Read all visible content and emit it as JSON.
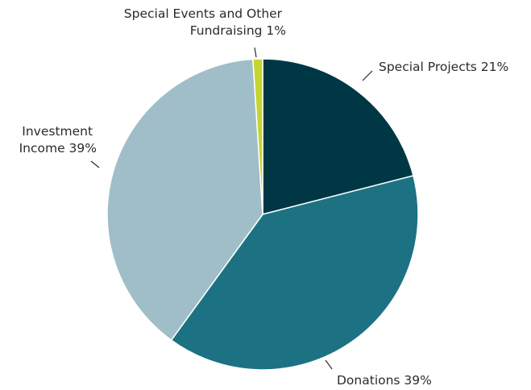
{
  "chart_data": {
    "type": "pie",
    "start_angle_deg": 0,
    "direction": "clockwise",
    "slices": [
      {
        "label": "Special Projects 21%",
        "lines": [
          "Special Projects 21%"
        ],
        "value": 21,
        "color": "#003745"
      },
      {
        "label": "Donations 39%",
        "lines": [
          "Donations 39%"
        ],
        "value": 39,
        "color": "#1c7282"
      },
      {
        "label": "Investment Income 39%",
        "lines": [
          "Investment",
          "Income 39%"
        ],
        "value": 39,
        "color": "#a0bec8"
      },
      {
        "label": "Special Events and Other Fundraising 1%",
        "lines": [
          "Special Events and Other",
          "Fundraising 1%"
        ],
        "value": 1,
        "color": "#c5d52f"
      }
    ]
  }
}
